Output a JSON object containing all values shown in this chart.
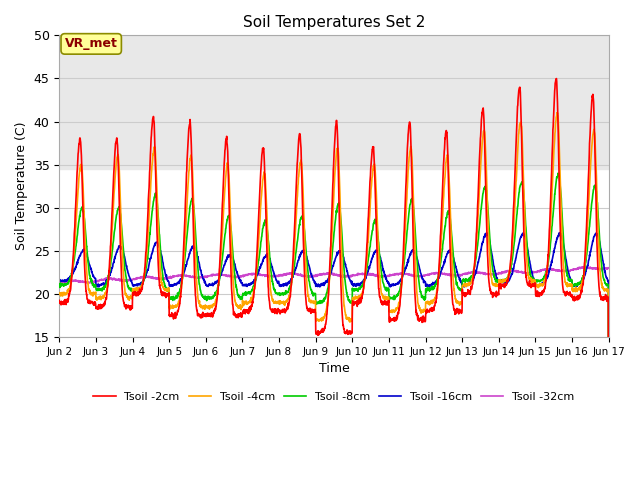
{
  "title": "Soil Temperatures Set 2",
  "xlabel": "Time",
  "ylabel": "Soil Temperature (C)",
  "ylim": [
    15,
    50
  ],
  "xlim": [
    0,
    15
  ],
  "x_tick_labels": [
    "Jun 2",
    "Jun 3",
    "Jun 4",
    "Jun 5",
    "Jun 6",
    "Jun 7",
    "Jun 8",
    "Jun 9",
    "Jun 10",
    "Jun 11",
    "Jun 12",
    "Jun 13",
    "Jun 14",
    "Jun 15",
    "Jun 16",
    "Jun 17"
  ],
  "annotation_text": "VR_met",
  "series": {
    "Tsoil -2cm": {
      "color": "#FF0000",
      "lw": 1.2
    },
    "Tsoil -4cm": {
      "color": "#FFA500",
      "lw": 1.2
    },
    "Tsoil -8cm": {
      "color": "#00CC00",
      "lw": 1.2
    },
    "Tsoil -16cm": {
      "color": "#0000CC",
      "lw": 1.2
    },
    "Tsoil -32cm": {
      "color": "#CC44CC",
      "lw": 1.2
    }
  },
  "bg_color": "#ffffff",
  "plot_bg": "#ffffff",
  "gray_band_ymin": 34.5,
  "gray_band_ymax": 50,
  "gray_band_color": "#e8e8e8"
}
